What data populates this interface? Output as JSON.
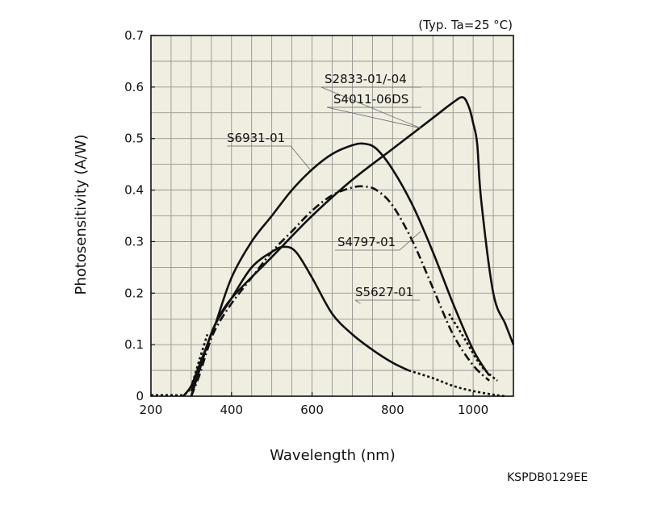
{
  "chart_data": {
    "type": "line",
    "condition": "(Typ. Ta=25 °C)",
    "xlabel": "Wavelength (nm)",
    "ylabel": "Photosensitivity (A/W)",
    "xlim": [
      200,
      1100
    ],
    "ylim": [
      0,
      0.7
    ],
    "x_ticks": [
      200,
      400,
      600,
      800,
      1000
    ],
    "x_tick_labels": [
      "200",
      "400",
      "600",
      "800",
      "1000"
    ],
    "y_ticks": [
      0,
      0.1,
      0.2,
      0.3,
      0.4,
      0.5,
      0.6,
      0.7
    ],
    "y_tick_labels": [
      "0",
      "0.1",
      "0.2",
      "0.3",
      "0.4",
      "0.5",
      "0.6",
      "0.7"
    ],
    "grid": true,
    "plot_background": "#f0ede1",
    "line_color": "#111111",
    "series": [
      {
        "name": "S2833-01/-04",
        "name2": "S4011-06DS",
        "style": "solid",
        "x": [
          280,
          300,
          320,
          340,
          360,
          400,
          500,
          600,
          700,
          800,
          900,
          950,
          975,
          990,
          1000,
          1010,
          1020,
          1050,
          1080,
          1100
        ],
        "y": [
          0.0,
          0.02,
          0.06,
          0.1,
          0.14,
          0.19,
          0.27,
          0.35,
          0.42,
          0.48,
          0.54,
          0.57,
          0.58,
          0.56,
          0.53,
          0.49,
          0.38,
          0.2,
          0.14,
          0.1
        ]
      },
      {
        "name": "S6931-01",
        "style": "solid",
        "x": [
          300,
          320,
          340,
          360,
          400,
          450,
          500,
          550,
          600,
          650,
          700,
          730,
          760,
          800,
          850,
          900,
          950,
          1000,
          1040
        ],
        "y": [
          0.01,
          0.05,
          0.1,
          0.14,
          0.23,
          0.3,
          0.35,
          0.4,
          0.44,
          0.47,
          0.487,
          0.49,
          0.48,
          0.44,
          0.37,
          0.28,
          0.18,
          0.09,
          0.04
        ]
      },
      {
        "name": "S4797-01",
        "style": "dashdot",
        "x": [
          300,
          320,
          340,
          360,
          400,
          450,
          500,
          550,
          600,
          650,
          700,
          730,
          760,
          800,
          850,
          900,
          950,
          1000,
          1040
        ],
        "y": [
          0.0,
          0.04,
          0.09,
          0.13,
          0.18,
          0.23,
          0.28,
          0.32,
          0.36,
          0.39,
          0.405,
          0.407,
          0.4,
          0.37,
          0.3,
          0.21,
          0.12,
          0.06,
          0.03
        ]
      },
      {
        "name": "S5627-01",
        "style": "solid",
        "x": [
          300,
          320,
          340,
          360,
          400,
          450,
          500,
          530,
          560,
          600,
          650,
          700,
          750,
          800,
          840
        ],
        "y": [
          0.0,
          0.05,
          0.1,
          0.14,
          0.19,
          0.25,
          0.28,
          0.29,
          0.28,
          0.23,
          0.16,
          0.12,
          0.09,
          0.065,
          0.05
        ]
      },
      {
        "name": "",
        "style": "dotted",
        "x": [
          840,
          900,
          950,
          1000,
          1050,
          1080
        ],
        "y": [
          0.05,
          0.035,
          0.02,
          0.01,
          0.003,
          0.0
        ]
      },
      {
        "name": "",
        "style": "dotted",
        "x": [
          200,
          220,
          250,
          270,
          285,
          300,
          320,
          340
        ],
        "y": [
          0.002,
          0.002,
          0.002,
          0.002,
          0.004,
          0.02,
          0.07,
          0.12
        ]
      },
      {
        "name": "",
        "style": "dotted",
        "x": [
          940,
          980,
          1010,
          1030,
          1060
        ],
        "y": [
          0.16,
          0.11,
          0.07,
          0.05,
          0.03
        ]
      }
    ],
    "annotations": [
      {
        "text": "S2833-01/-04",
        "points_to": [
          870,
          0.52
        ]
      },
      {
        "text": "S4011-06DS",
        "points_to": [
          870,
          0.52
        ]
      },
      {
        "text": "S6931-01",
        "points_to": [
          595,
          0.44
        ]
      },
      {
        "text": "S4797-01",
        "points_to": [
          870,
          0.32
        ]
      },
      {
        "text": "S5627-01",
        "points_to": [
          720,
          0.18
        ]
      }
    ]
  },
  "document_code": "KSPDB0129EE"
}
